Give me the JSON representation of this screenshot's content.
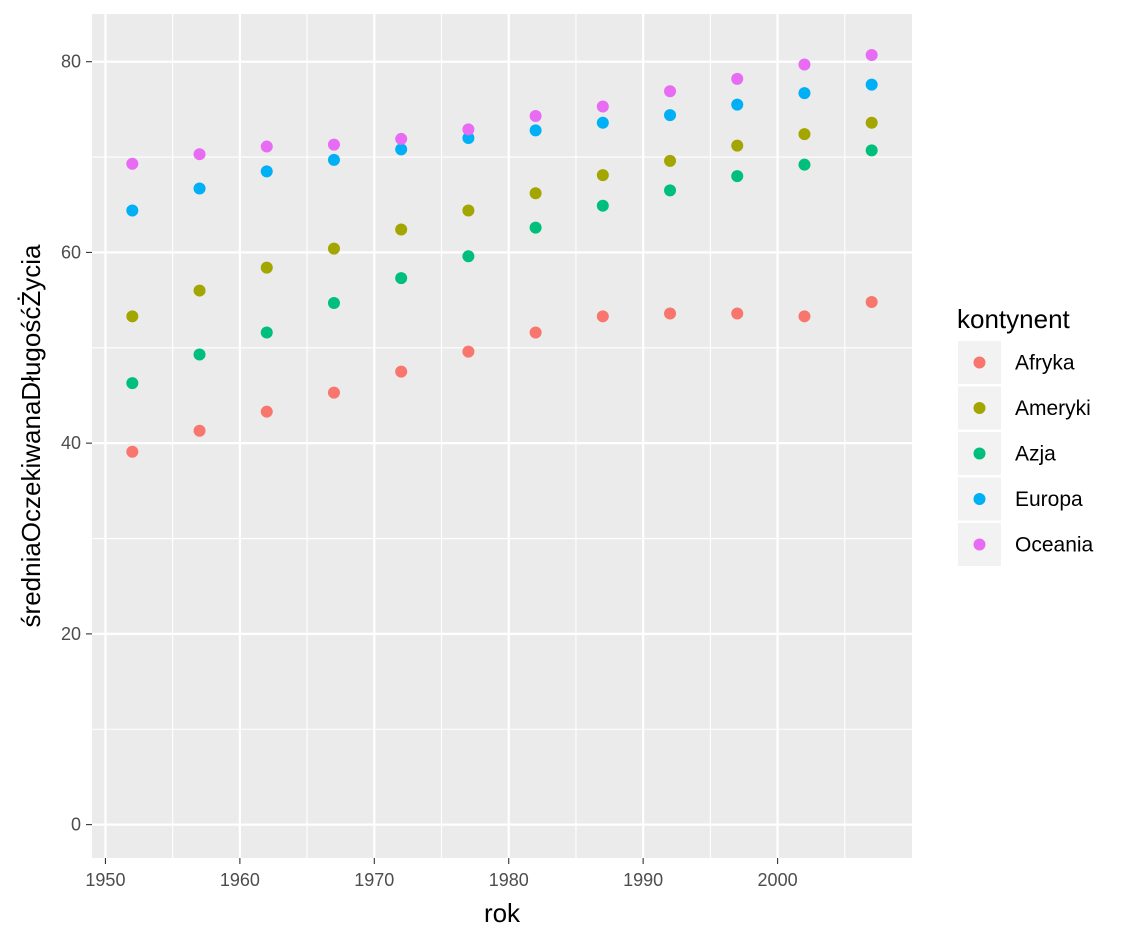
{
  "chart_data": {
    "type": "scatter",
    "xlabel": "rok",
    "ylabel": "średniaOczekiwanaDługośćŻycia",
    "xlim": [
      1949,
      2010
    ],
    "ylim": [
      -3.5,
      85
    ],
    "x_ticks": [
      1950,
      1960,
      1970,
      1980,
      1990,
      2000
    ],
    "y_ticks": [
      0,
      20,
      40,
      60,
      80
    ],
    "grid": true,
    "legend_title": "kontynent",
    "legend_position": "right",
    "x": [
      1952,
      1957,
      1962,
      1967,
      1972,
      1977,
      1982,
      1987,
      1992,
      1997,
      2002,
      2007
    ],
    "series": [
      {
        "name": "Afryka",
        "color": "#F8766D",
        "values": [
          39.1,
          41.3,
          43.3,
          45.3,
          47.5,
          49.6,
          51.6,
          53.3,
          53.6,
          53.6,
          53.3,
          54.8
        ]
      },
      {
        "name": "Ameryki",
        "color": "#A3A500",
        "values": [
          53.3,
          56.0,
          58.4,
          60.4,
          62.4,
          64.4,
          66.2,
          68.1,
          69.6,
          71.2,
          72.4,
          73.6
        ]
      },
      {
        "name": "Azja",
        "color": "#00BF7D",
        "values": [
          46.3,
          49.3,
          51.6,
          54.7,
          57.3,
          59.6,
          62.6,
          64.9,
          66.5,
          68.0,
          69.2,
          70.7
        ]
      },
      {
        "name": "Europa",
        "color": "#00B0F6",
        "values": [
          64.4,
          66.7,
          68.5,
          69.7,
          70.8,
          72.0,
          72.8,
          73.6,
          74.4,
          75.5,
          76.7,
          77.6
        ]
      },
      {
        "name": "Oceania",
        "color": "#E76BF3",
        "values": [
          69.3,
          70.3,
          71.1,
          71.3,
          71.9,
          72.9,
          74.3,
          75.3,
          76.9,
          78.2,
          79.7,
          80.7
        ]
      }
    ]
  }
}
